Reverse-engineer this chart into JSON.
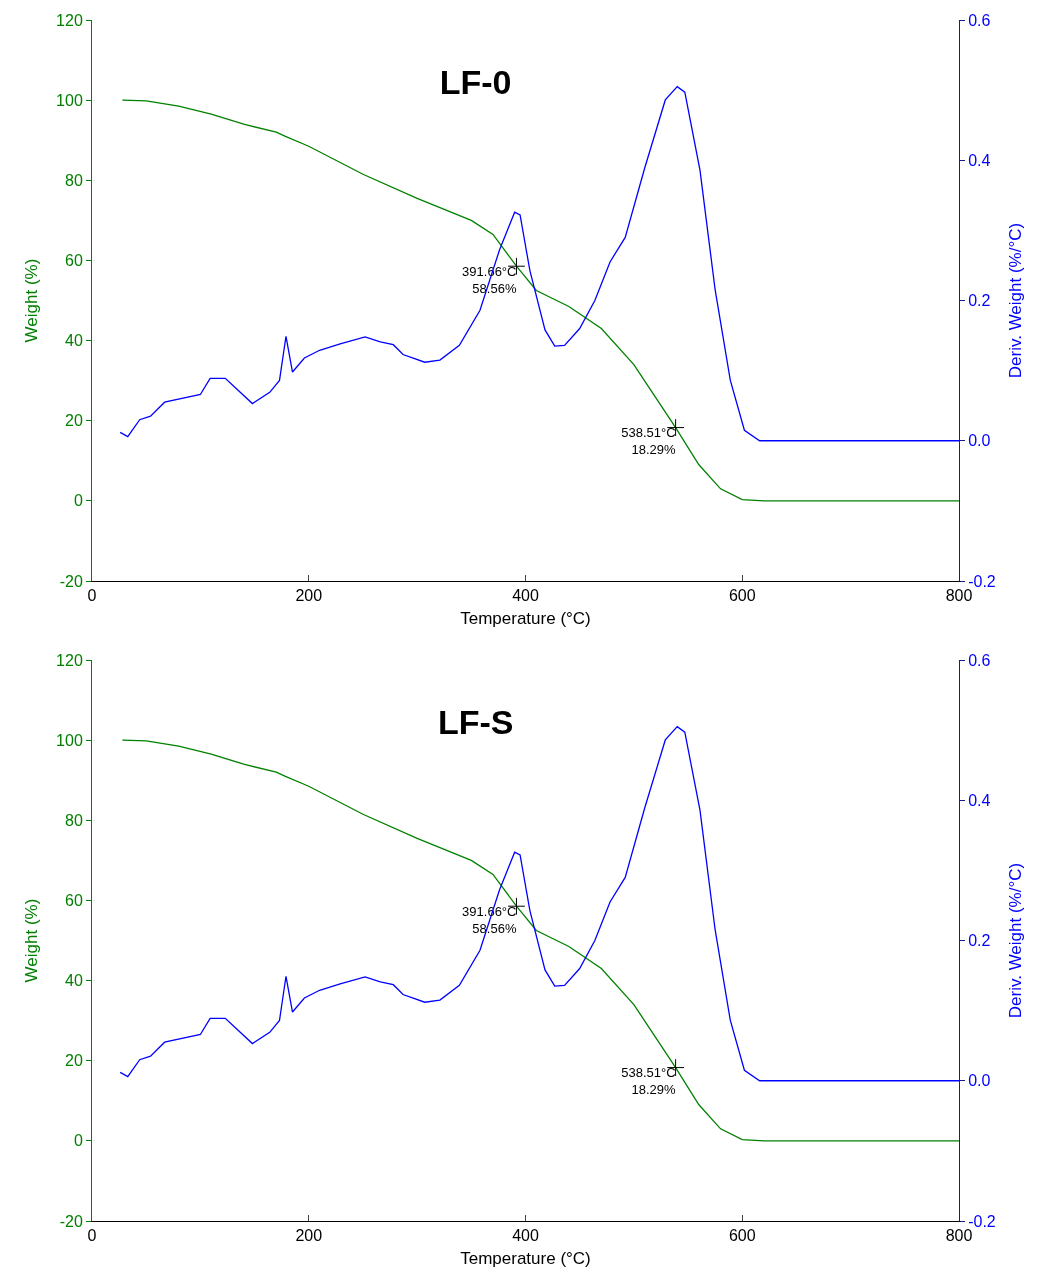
{
  "chart_data": [
    {
      "type": "line",
      "title": "LF-0",
      "xlabel": "Temperature (°C)",
      "ylabel": "Weight (%)",
      "y2label": "Deriv. Weight (%/°C)",
      "xlim": [
        0,
        800
      ],
      "xticks": [
        0,
        200,
        400,
        600,
        800
      ],
      "ylim": [
        -20,
        120
      ],
      "yticks": [
        -20,
        0,
        20,
        40,
        60,
        80,
        100,
        120
      ],
      "y2lim": [
        -0.2,
        0.6
      ],
      "y2ticks": [
        {
          "value": -0.2,
          "label": "-0.2"
        },
        {
          "value": 0,
          "label": "0.0"
        },
        {
          "value": 0.2,
          "label": "0.2"
        },
        {
          "value": 0.4,
          "label": "0.4"
        },
        {
          "value": 0.6,
          "label": "0.6"
        }
      ],
      "grid": false,
      "marker": "none",
      "line_style": "solid",
      "series": [
        {
          "type": "line",
          "color": "#008000",
          "x": [
            28,
            50,
            80,
            110,
            140,
            170,
            178,
            200,
            250,
            300,
            350,
            370,
            391.66,
            410,
            440,
            470,
            500,
            538.51,
            560,
            580,
            600,
            620,
            800
          ],
          "values": [
            100,
            99.8,
            98.5,
            96.5,
            94,
            92,
            91,
            88.5,
            81.5,
            75.5,
            70,
            66.5,
            58.56,
            52.5,
            48.5,
            43,
            34,
            18.29,
            9,
            3,
            0.3,
            0,
            0
          ]
        },
        {
          "type": "line",
          "axis": "y2",
          "color": "#0000ff",
          "x": [
            26,
            33,
            44,
            54,
            67,
            100,
            109,
            123,
            148,
            164,
            173,
            179,
            185,
            196,
            210,
            229,
            252,
            266,
            278,
            287,
            307,
            321,
            339,
            358,
            376,
            390,
            395,
            404,
            418,
            427,
            436,
            450,
            464,
            478,
            492,
            510,
            529,
            540,
            547,
            561,
            575,
            589,
            602,
            616,
            800
          ],
          "values": [
            0.012,
            0.006,
            0.03,
            0.035,
            0.055,
            0.066,
            0.089,
            0.089,
            0.053,
            0.069,
            0.086,
            0.149,
            0.098,
            0.118,
            0.129,
            0.138,
            0.148,
            0.141,
            0.137,
            0.123,
            0.112,
            0.115,
            0.136,
            0.186,
            0.272,
            0.326,
            0.322,
            0.243,
            0.158,
            0.135,
            0.136,
            0.16,
            0.2,
            0.255,
            0.29,
            0.389,
            0.486,
            0.505,
            0.497,
            0.386,
            0.215,
            0.086,
            0.015,
            0,
            0
          ]
        },
        {
          "type": "scatter",
          "marker": "cross",
          "color": "#000000",
          "x": [
            391.66,
            538.51
          ],
          "values": [
            58.56,
            18.29
          ]
        }
      ],
      "annotations": [
        "391.66°C\n58.56%",
        "538.51°C\n18.29%"
      ]
    },
    {
      "type": "line",
      "title": "LF-S",
      "xlabel": "Temperature (°C)",
      "ylabel": "Weight (%)",
      "y2label": "Deriv. Weight (%/°C)",
      "xlim": [
        0,
        800
      ],
      "xticks": [
        0,
        200,
        400,
        600,
        800
      ],
      "ylim": [
        -20,
        120
      ],
      "yticks": [
        -20,
        0,
        20,
        40,
        60,
        80,
        100,
        120
      ],
      "y2lim": [
        -0.2,
        0.6
      ],
      "y2ticks": [
        {
          "value": -0.2,
          "label": "-0.2"
        },
        {
          "value": 0,
          "label": "0.0"
        },
        {
          "value": 0.2,
          "label": "0.2"
        },
        {
          "value": 0.4,
          "label": "0.4"
        },
        {
          "value": 0.6,
          "label": "0.6"
        }
      ],
      "grid": false,
      "marker": "none",
      "line_style": "solid",
      "series": [
        {
          "type": "line",
          "color": "#008000",
          "x": [
            28,
            50,
            80,
            110,
            140,
            170,
            178,
            200,
            250,
            300,
            350,
            370,
            391.66,
            410,
            440,
            470,
            500,
            538.51,
            560,
            580,
            600,
            620,
            800
          ],
          "values": [
            100,
            99.8,
            98.5,
            96.5,
            94,
            92,
            91,
            88.5,
            81.5,
            75.5,
            70,
            66.5,
            58.56,
            52.5,
            48.5,
            43,
            34,
            18.29,
            9,
            3,
            0.3,
            0,
            0
          ]
        },
        {
          "type": "line",
          "axis": "y2",
          "color": "#0000ff",
          "x": [
            26,
            33,
            44,
            54,
            67,
            100,
            109,
            123,
            148,
            164,
            173,
            179,
            185,
            196,
            210,
            229,
            252,
            266,
            278,
            287,
            307,
            321,
            339,
            358,
            376,
            390,
            395,
            404,
            418,
            427,
            436,
            450,
            464,
            478,
            492,
            510,
            529,
            540,
            547,
            561,
            575,
            589,
            602,
            616,
            800
          ],
          "values": [
            0.012,
            0.006,
            0.03,
            0.035,
            0.055,
            0.066,
            0.089,
            0.089,
            0.053,
            0.069,
            0.086,
            0.149,
            0.098,
            0.118,
            0.129,
            0.138,
            0.148,
            0.141,
            0.137,
            0.123,
            0.112,
            0.115,
            0.136,
            0.186,
            0.272,
            0.326,
            0.322,
            0.243,
            0.158,
            0.135,
            0.136,
            0.16,
            0.2,
            0.255,
            0.29,
            0.389,
            0.486,
            0.505,
            0.497,
            0.386,
            0.215,
            0.086,
            0.015,
            0,
            0
          ]
        },
        {
          "type": "scatter",
          "marker": "cross",
          "color": "#000000",
          "x": [
            391.66,
            538.51
          ],
          "values": [
            58.56,
            18.29
          ]
        }
      ],
      "annotations": [
        "391.66°C\n58.56%",
        "538.51°C\n18.29%"
      ]
    }
  ]
}
